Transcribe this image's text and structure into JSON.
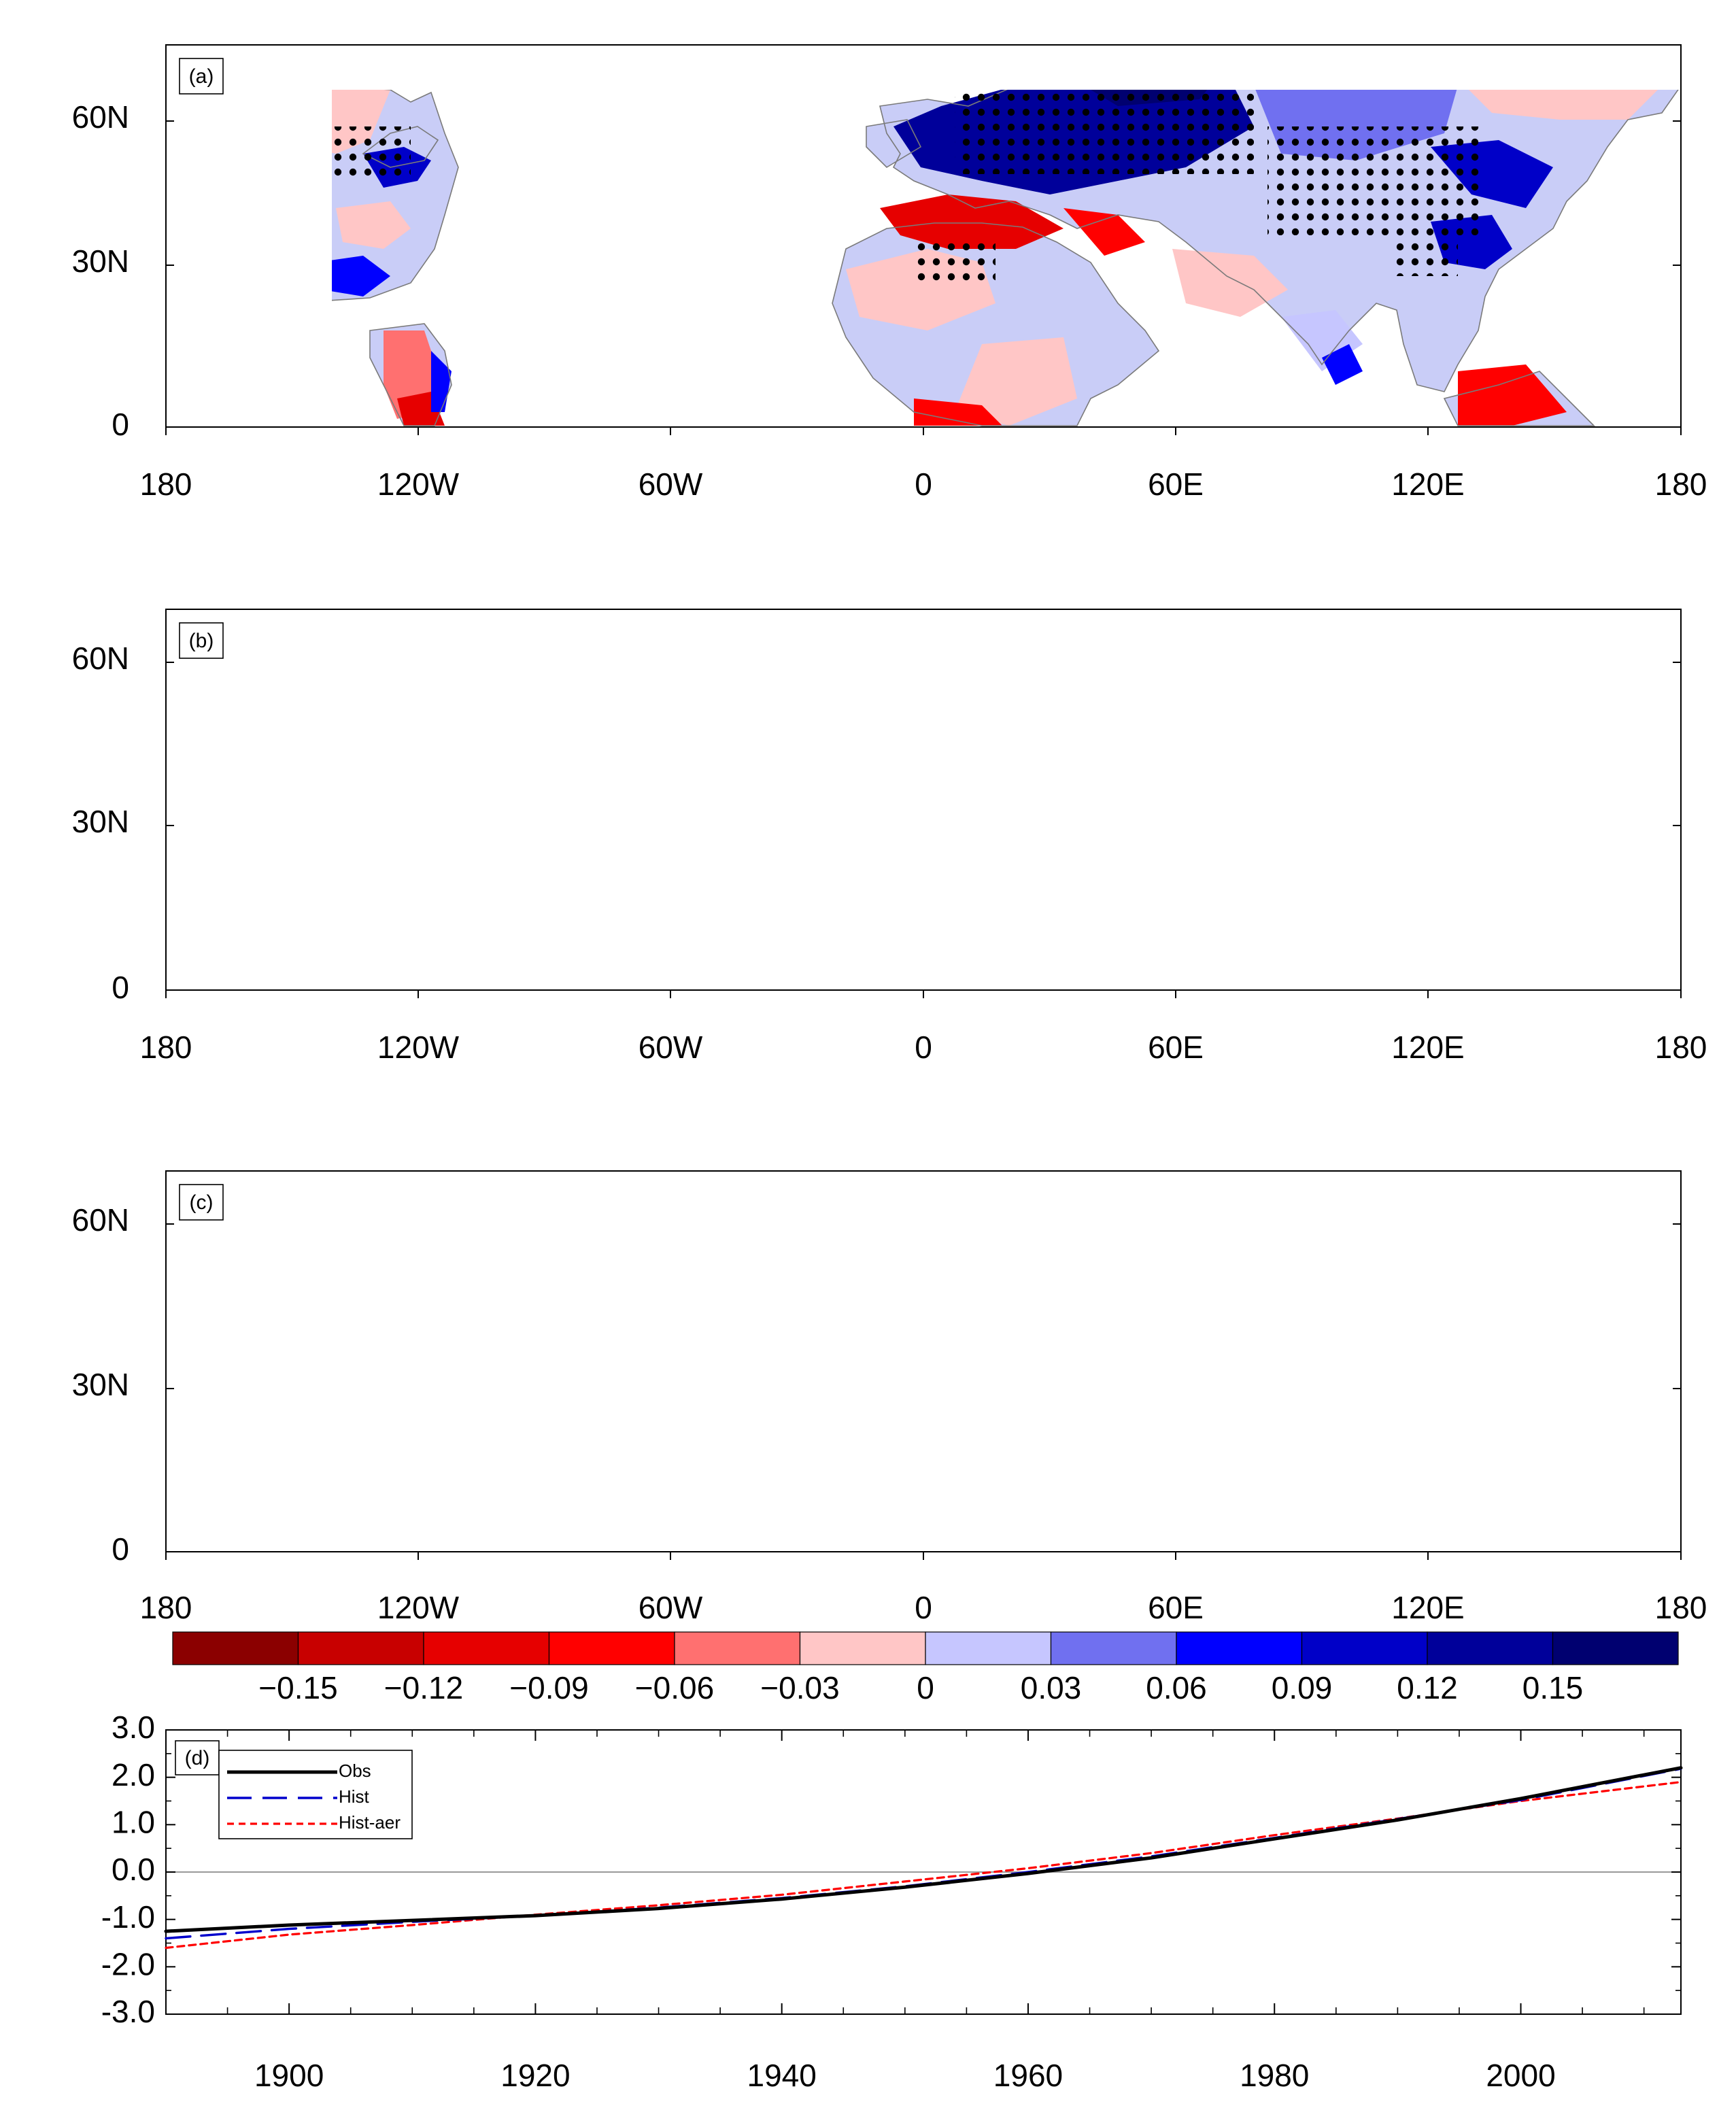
{
  "figure": {
    "map_panels": [
      {
        "tag": "(a)",
        "y_ticks": [
          "60N",
          "30N",
          "0"
        ],
        "x_ticks": [
          "180",
          "120W",
          "60W",
          "0",
          "60E",
          "120E",
          "180"
        ]
      },
      {
        "tag": "(b)",
        "y_ticks": [
          "60N",
          "30N",
          "0"
        ],
        "x_ticks": [
          "180",
          "120W",
          "60W",
          "0",
          "60E",
          "120E",
          "180"
        ]
      },
      {
        "tag": "(c)",
        "y_ticks": [
          "60N",
          "30N",
          "0"
        ],
        "x_ticks": [
          "180",
          "120W",
          "60W",
          "0",
          "60E",
          "120E",
          "180"
        ]
      }
    ],
    "colorbar": {
      "labels": [
        "−0.15",
        "−0.12",
        "−0.09",
        "−0.06",
        "−0.03",
        "0",
        "0.03",
        "0.06",
        "0.09",
        "0.12",
        "0.15"
      ],
      "colors": [
        "#8b0000",
        "#c80000",
        "#e60000",
        "#ff0000",
        "#ff7070",
        "#ffc6c6",
        "#c6c6ff",
        "#7070f0",
        "#0000ff",
        "#0000c8",
        "#00009a",
        "#000070"
      ]
    }
  },
  "chart_data": {
    "type": "line",
    "tag": "(d)",
    "x": [
      1890,
      1900,
      1910,
      1920,
      1930,
      1940,
      1950,
      1960,
      1970,
      1980,
      1990,
      2000,
      2013
    ],
    "series": [
      {
        "name": "Obs",
        "color": "#000000",
        "values": [
          -1.25,
          -1.12,
          -1.02,
          -0.92,
          -0.77,
          -0.57,
          -0.32,
          -0.03,
          0.3,
          0.7,
          1.1,
          1.55,
          2.2
        ]
      },
      {
        "name": "Hist",
        "color": "#0000cc",
        "values": [
          -1.4,
          -1.2,
          -1.05,
          -0.92,
          -0.75,
          -0.55,
          -0.3,
          0.0,
          0.33,
          0.72,
          1.12,
          1.52,
          2.18
        ]
      },
      {
        "name": "Hist-aer",
        "color": "#ff0000",
        "values": [
          -1.6,
          -1.32,
          -1.12,
          -0.9,
          -0.7,
          -0.48,
          -0.2,
          0.08,
          0.4,
          0.78,
          1.13,
          1.5,
          1.9
        ]
      }
    ],
    "y_tick_labels": [
      "3.0",
      "2.0",
      "1.0",
      "0.0",
      "-1.0",
      "-2.0",
      "-3.0"
    ],
    "x_tick_labels": [
      "1900",
      "1920",
      "1940",
      "1960",
      "1980",
      "2000"
    ],
    "ylim": [
      -3,
      3
    ],
    "xlim": [
      1890,
      2013
    ]
  }
}
